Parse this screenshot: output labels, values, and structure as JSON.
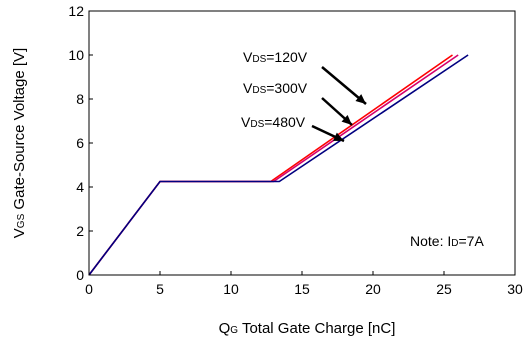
{
  "chart_data": {
    "type": "line",
    "title": "",
    "xlabel": {
      "main": "Q",
      "sub": "G",
      "rest": " Total Gate Charge [nC]"
    },
    "ylabel": {
      "main": "V",
      "sub": "GS",
      "rest": " Gate-Source Voltage [V]"
    },
    "xlim": [
      0,
      30
    ],
    "ylim": [
      0,
      12
    ],
    "xticks": [
      0,
      5,
      10,
      15,
      20,
      25,
      30
    ],
    "yticks": [
      0,
      2,
      4,
      6,
      8,
      10,
      12
    ],
    "grid": false,
    "series": [
      {
        "label": {
          "main": "V",
          "sub": "DS",
          "rest": "=120V"
        },
        "color": "#ff0000",
        "points": [
          [
            0,
            0
          ],
          [
            5,
            4.25
          ],
          [
            12.8,
            4.25
          ],
          [
            25.6,
            10
          ]
        ]
      },
      {
        "label": {
          "main": "V",
          "sub": "DS",
          "rest": "=300V"
        },
        "color": "#d4006e",
        "points": [
          [
            0,
            0
          ],
          [
            5,
            4.25
          ],
          [
            13.0,
            4.25
          ],
          [
            26.0,
            10
          ]
        ]
      },
      {
        "label": {
          "main": "V",
          "sub": "DS",
          "rest": "=480V"
        },
        "color": "#000080",
        "points": [
          [
            0,
            0
          ],
          [
            5,
            4.25
          ],
          [
            13.4,
            4.25
          ],
          [
            26.7,
            10
          ]
        ]
      }
    ],
    "annotations": [
      {
        "main": "Note: I",
        "sub": "D",
        "rest": "=7A"
      }
    ]
  }
}
